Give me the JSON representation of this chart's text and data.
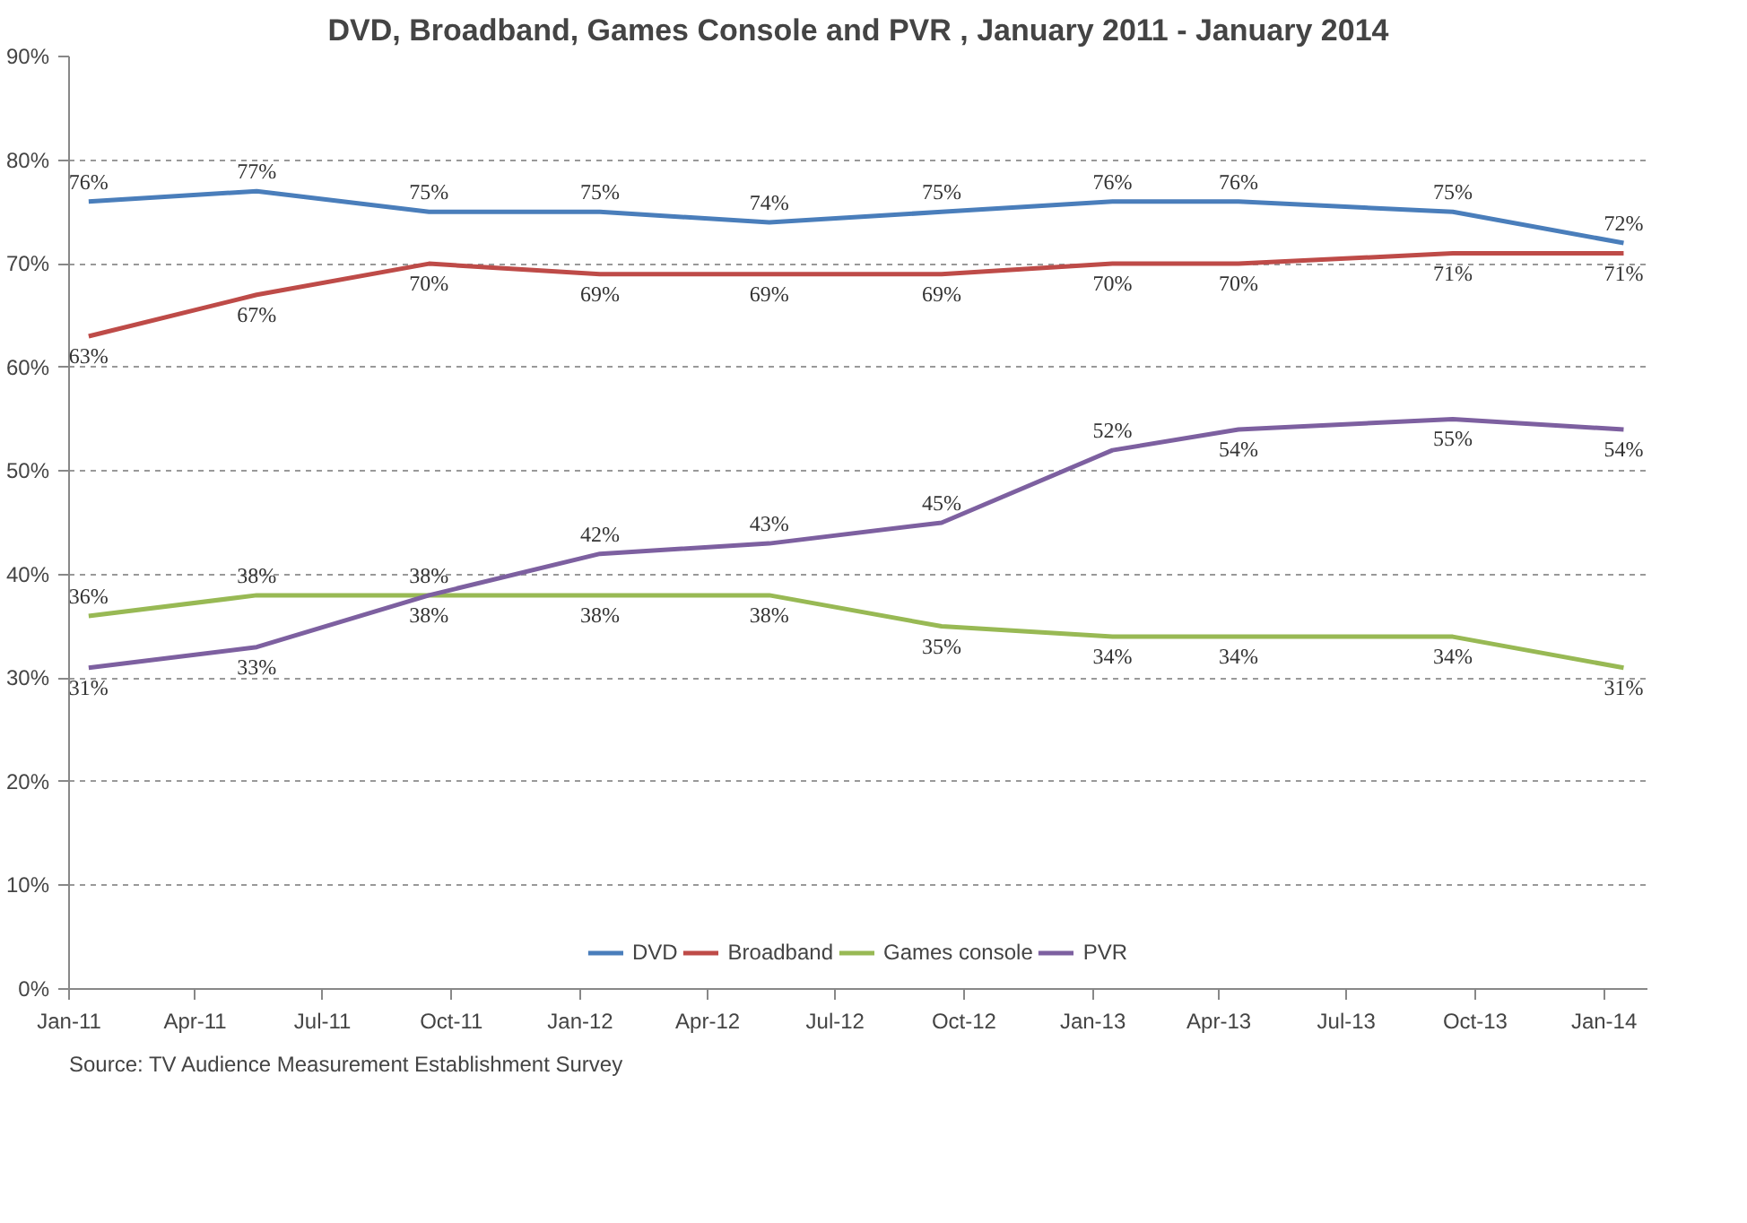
{
  "chart_data": {
    "type": "line",
    "title": "DVD, Broadband, Games Console and PVR , January 2011 - January 2014",
    "x": [
      "2011-01-15",
      "2011-05-15",
      "2011-09-15",
      "2012-01-15",
      "2012-05-15",
      "2012-09-15",
      "2013-01-15",
      "2013-04-15",
      "2013-09-15",
      "2014-01-15"
    ],
    "series": [
      {
        "name": "DVD",
        "color": "#4a7ebb",
        "values": [
          76,
          77,
          75,
          75,
          74,
          75,
          76,
          76,
          75,
          72
        ],
        "value_labels": [
          "76%",
          "77%",
          "75%",
          "75%",
          "74%",
          "75%",
          "76%",
          "76%",
          "75%",
          "72%"
        ]
      },
      {
        "name": "Broadband",
        "color": "#be4b48",
        "values": [
          63,
          67,
          70,
          69,
          69,
          69,
          70,
          70,
          71,
          71
        ],
        "value_labels": [
          "63%",
          "67%",
          "70%",
          "69%",
          "69%",
          "69%",
          "70%",
          "70%",
          "71%",
          "71%"
        ]
      },
      {
        "name": "Games console",
        "color": "#98b954",
        "values": [
          36,
          38,
          38,
          38,
          38,
          35,
          34,
          34,
          34,
          31
        ],
        "value_labels": [
          "36%",
          "38%",
          "38%",
          "38%",
          "38%",
          "35%",
          "34%",
          "34%",
          "34%",
          "31%"
        ]
      },
      {
        "name": "PVR",
        "color": "#7d60a0",
        "values": [
          31,
          33,
          38,
          42,
          43,
          45,
          52,
          54,
          55,
          54
        ],
        "value_labels": [
          "31%",
          "33%",
          "38%",
          "42%",
          "43%",
          "45%",
          "52%",
          "54%",
          "55%",
          "54%"
        ]
      }
    ],
    "xlim": [
      "2011-01-01",
      "2014-02-01"
    ],
    "xticks": [
      {
        "value": "2011-01-01",
        "label": "Jan-11"
      },
      {
        "value": "2011-04-01",
        "label": "Apr-11"
      },
      {
        "value": "2011-07-01",
        "label": "Jul-11"
      },
      {
        "value": "2011-10-01",
        "label": "Oct-11"
      },
      {
        "value": "2012-01-01",
        "label": "Jan-12"
      },
      {
        "value": "2012-04-01",
        "label": "Apr-12"
      },
      {
        "value": "2012-07-01",
        "label": "Jul-12"
      },
      {
        "value": "2012-10-01",
        "label": "Oct-12"
      },
      {
        "value": "2013-01-01",
        "label": "Jan-13"
      },
      {
        "value": "2013-04-01",
        "label": "Apr-13"
      },
      {
        "value": "2013-07-01",
        "label": "Jul-13"
      },
      {
        "value": "2013-10-01",
        "label": "Oct-13"
      },
      {
        "value": "2014-01-01",
        "label": "Jan-14"
      }
    ],
    "ylim": [
      0,
      90
    ],
    "yticks": [
      {
        "value": 0,
        "label": "0%"
      },
      {
        "value": 10,
        "label": "10%"
      },
      {
        "value": 20,
        "label": "20%"
      },
      {
        "value": 30,
        "label": "30%"
      },
      {
        "value": 40,
        "label": "40%"
      },
      {
        "value": 50,
        "label": "50%"
      },
      {
        "value": 60,
        "label": "60%"
      },
      {
        "value": 70,
        "label": "70%"
      },
      {
        "value": 80,
        "label": "80%"
      },
      {
        "value": 90,
        "label": "90%"
      }
    ],
    "grid": "y",
    "legend": "bottom",
    "marker": "none",
    "line_style": "solid",
    "annotations": [
      "Source: TV Audience Measurement Establishment Survey"
    ]
  }
}
